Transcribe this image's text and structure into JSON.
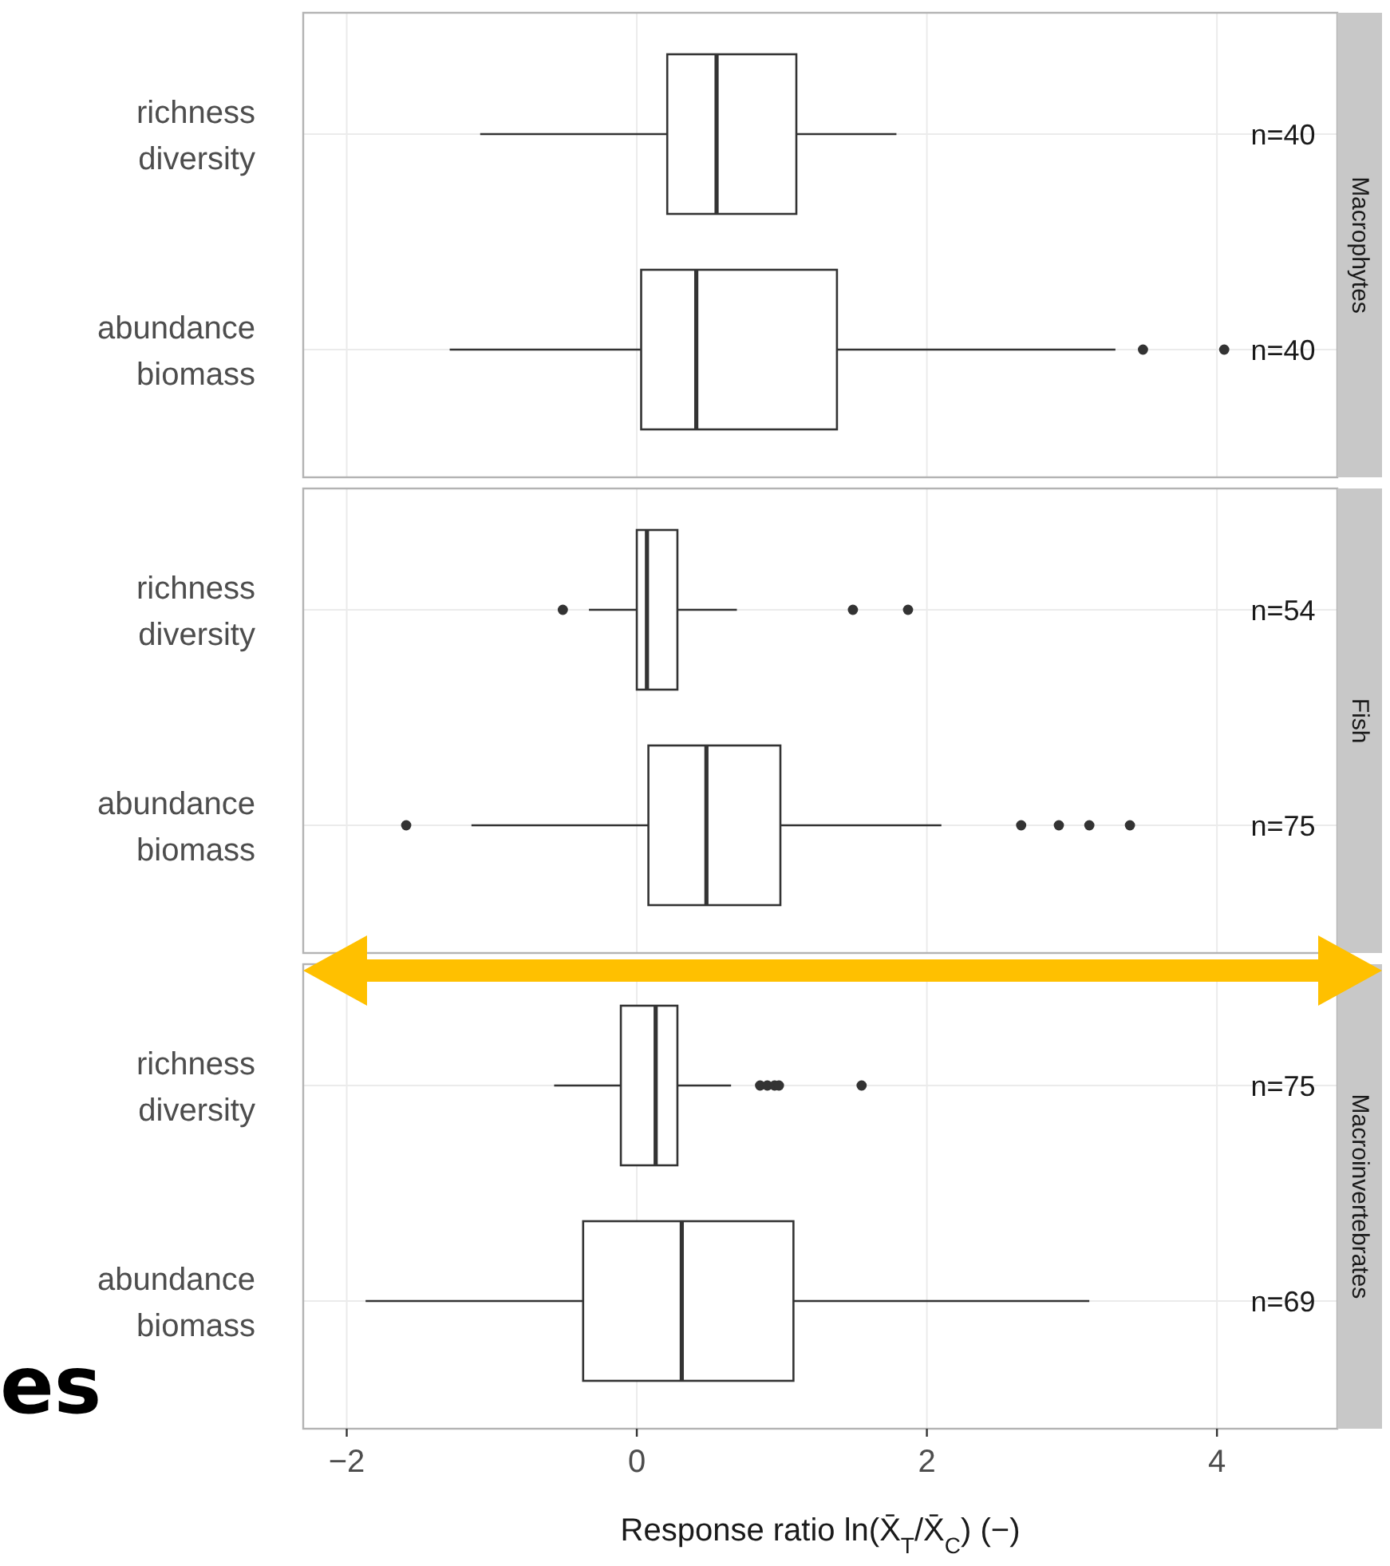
{
  "chart_data": [
    {
      "type": "box",
      "orientation": "horizontal",
      "title": "Macrophytes",
      "categories": [
        "richness\ndiversity",
        "abundance\nbiomass"
      ],
      "xlim": [
        -2.3,
        4.83
      ],
      "xticks": [
        -2,
        0,
        2,
        4
      ],
      "grid": true,
      "tick_labels": "y",
      "boxes": [
        {
          "low": -1.08,
          "q1": 0.21,
          "median": 0.55,
          "q3": 1.1,
          "high": 1.79
        },
        {
          "low": -1.29,
          "q1": 0.03,
          "median": 0.41,
          "q3": 1.38,
          "high": 3.3,
          "outliers": [
            3.49,
            4.05
          ]
        }
      ],
      "annotations": [
        "n=40",
        "n=40"
      ]
    },
    {
      "type": "box",
      "orientation": "horizontal",
      "title": "Fish",
      "categories": [
        "richness\ndiversity",
        "abundance\nbiomass"
      ],
      "xlim": [
        -2.3,
        4.83
      ],
      "xticks": [
        -2,
        0,
        2,
        4
      ],
      "grid": true,
      "tick_labels": "y",
      "boxes": [
        {
          "low": -0.33,
          "q1": 0.0,
          "median": 0.07,
          "q3": 0.28,
          "high": 0.69,
          "outliers": [
            -0.51,
            1.49,
            1.87
          ]
        },
        {
          "low": -1.14,
          "q1": 0.08,
          "median": 0.48,
          "q3": 0.99,
          "high": 2.1,
          "outliers": [
            -1.59,
            2.65,
            2.91,
            3.12,
            3.4
          ]
        }
      ],
      "annotations": [
        "n=54",
        "n=75"
      ]
    },
    {
      "type": "box",
      "orientation": "horizontal",
      "title": "Macroinvertebrates",
      "categories": [
        "richness\ndiversity",
        "abundance\nbiomass"
      ],
      "xlim": [
        -2.3,
        4.83
      ],
      "xticks": [
        -2,
        0,
        2,
        4
      ],
      "grid": true,
      "xlabel": "Response ratio ln(X̄$_{T}$/X̄$_{C}$) (−)",
      "boxes": [
        {
          "low": -0.57,
          "q1": -0.11,
          "median": 0.13,
          "q3": 0.28,
          "high": 0.65,
          "outliers": [
            0.85,
            0.9,
            0.95,
            0.98,
            1.55
          ]
        },
        {
          "low": -1.87,
          "q1": -0.37,
          "median": 0.31,
          "q3": 1.08,
          "high": 3.12
        }
      ],
      "annotations": [
        "n=75",
        "n=69",
        "es"
      ]
    }
  ]
}
